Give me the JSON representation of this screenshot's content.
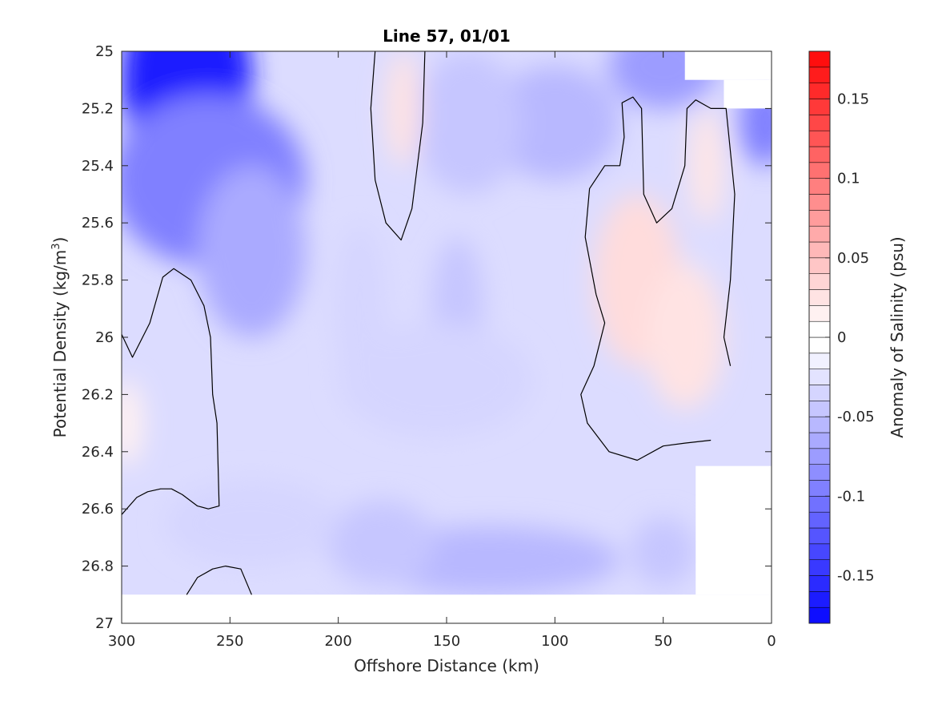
{
  "chart_data": {
    "type": "heatmap",
    "subtype": "filled-contour",
    "title": "Line 57, 01/01",
    "xlabel": "Offshore Distance (km)",
    "ylabel": "Potential Density (kg/m",
    "ylabel_sup": "3",
    "ylabel_close": ")",
    "x_reversed": true,
    "y_reversed": true,
    "xlim": [
      0,
      300
    ],
    "ylim": [
      25,
      27
    ],
    "xticks": [
      300,
      250,
      200,
      150,
      100,
      50,
      0
    ],
    "yticks": [
      25,
      25.2,
      25.4,
      25.6,
      25.8,
      26,
      26.2,
      26.4,
      26.6,
      26.8,
      27
    ],
    "xtick_labels": [
      "300",
      "250",
      "200",
      "150",
      "100",
      "50",
      "0"
    ],
    "ytick_labels": [
      "25",
      "25.2",
      "25.4",
      "25.6",
      "25.8",
      "26",
      "26.2",
      "26.4",
      "26.6",
      "26.8",
      "27"
    ],
    "colorbar": {
      "label": "Anomaly of Salinity (psu)",
      "range": [
        -0.18,
        0.18
      ],
      "levels": 36,
      "ticks": [
        0.15,
        0.1,
        0.05,
        0,
        -0.05,
        -0.1,
        -0.15
      ],
      "tick_labels": [
        "0.15",
        "0.1",
        "0.05",
        "0",
        "-0.05",
        "-0.1",
        "-0.15"
      ],
      "neg_color": "#0000ff",
      "pos_color": "#ff0000",
      "zero_color": "#ffffff"
    },
    "grid": false,
    "data_extent": {
      "x": [
        0,
        300
      ],
      "y": [
        25,
        26.9
      ]
    },
    "nodata_regions": [
      {
        "name": "top-right-gap-1",
        "x": [
          0,
          40
        ],
        "y": [
          25,
          25.1
        ]
      },
      {
        "name": "top-right-gap-2",
        "x": [
          0,
          22
        ],
        "y": [
          25.1,
          25.2
        ]
      },
      {
        "name": "bottom-right-gap",
        "x": [
          0,
          35
        ],
        "y": [
          26.45,
          26.9
        ]
      }
    ],
    "anomaly_field": [
      {
        "x": 270,
        "y": 25.1,
        "value": -0.16,
        "rx": 30,
        "ry": 0.35
      },
      {
        "x": 260,
        "y": 25.45,
        "value": -0.09,
        "rx": 45,
        "ry": 0.3
      },
      {
        "x": 240,
        "y": 25.7,
        "value": -0.06,
        "rx": 25,
        "ry": 0.3
      },
      {
        "x": 50,
        "y": 25.05,
        "value": -0.07,
        "rx": 25,
        "ry": 0.15
      },
      {
        "x": 100,
        "y": 25.25,
        "value": -0.05,
        "rx": 30,
        "ry": 0.2
      },
      {
        "x": 140,
        "y": 25.25,
        "value": -0.04,
        "rx": 25,
        "ry": 0.25
      },
      {
        "x": 3,
        "y": 25.25,
        "value": -0.09,
        "rx": 12,
        "ry": 0.15
      },
      {
        "x": 145,
        "y": 25.9,
        "value": -0.04,
        "rx": 12,
        "ry": 0.25
      },
      {
        "x": 190,
        "y": 25.9,
        "value": -0.03,
        "rx": 12,
        "ry": 0.3
      },
      {
        "x": 155,
        "y": 26.15,
        "value": -0.03,
        "rx": 45,
        "ry": 0.2
      },
      {
        "x": 130,
        "y": 26.78,
        "value": -0.05,
        "rx": 60,
        "ry": 0.12
      },
      {
        "x": 180,
        "y": 26.72,
        "value": -0.04,
        "rx": 25,
        "ry": 0.15
      },
      {
        "x": 50,
        "y": 26.75,
        "value": -0.04,
        "rx": 15,
        "ry": 0.12
      },
      {
        "x": 240,
        "y": 26.65,
        "value": -0.03,
        "rx": 40,
        "ry": 0.15
      },
      {
        "x": 35,
        "y": 25.9,
        "value": -0.02,
        "rx": 8,
        "ry": 0.2
      },
      {
        "x": 170,
        "y": 25.2,
        "value": 0.02,
        "rx": 8,
        "ry": 0.2
      },
      {
        "x": 62,
        "y": 25.8,
        "value": 0.025,
        "rx": 20,
        "ry": 0.3
      },
      {
        "x": 40,
        "y": 26.0,
        "value": 0.02,
        "rx": 18,
        "ry": 0.25
      },
      {
        "x": 30,
        "y": 25.4,
        "value": 0.018,
        "rx": 8,
        "ry": 0.2
      },
      {
        "x": 298,
        "y": 26.3,
        "value": 0.01,
        "rx": 8,
        "ry": 0.15
      }
    ],
    "zero_contours": [
      {
        "name": "contour-left-upper",
        "points": [
          [
            300,
            25.99
          ],
          [
            295,
            26.07
          ],
          [
            287,
            25.95
          ],
          [
            281,
            25.79
          ],
          [
            276,
            25.76
          ],
          [
            268,
            25.8
          ],
          [
            262,
            25.89
          ],
          [
            259,
            26.0
          ],
          [
            258,
            26.2
          ],
          [
            256,
            26.3
          ],
          [
            255,
            26.59
          ],
          [
            260,
            26.6
          ],
          [
            265,
            26.59
          ],
          [
            272,
            26.55
          ],
          [
            277,
            26.53
          ],
          [
            282,
            26.53
          ],
          [
            288,
            26.54
          ],
          [
            293,
            26.56
          ],
          [
            300,
            26.62
          ]
        ]
      },
      {
        "name": "contour-left-lower",
        "points": [
          [
            270,
            26.9
          ],
          [
            265,
            26.84
          ],
          [
            258,
            26.81
          ],
          [
            252,
            26.8
          ],
          [
            245,
            26.81
          ],
          [
            240,
            26.9
          ]
        ]
      },
      {
        "name": "contour-mid-top",
        "points": [
          [
            183,
            25.0
          ],
          [
            185,
            25.2
          ],
          [
            183,
            25.45
          ],
          [
            178,
            25.6
          ],
          [
            171,
            25.66
          ],
          [
            166,
            25.55
          ],
          [
            161,
            25.25
          ],
          [
            160,
            25.0
          ]
        ]
      },
      {
        "name": "contour-right",
        "points": [
          [
            28,
            26.36
          ],
          [
            40,
            26.37
          ],
          [
            50,
            26.38
          ],
          [
            62,
            26.43
          ],
          [
            75,
            26.4
          ],
          [
            85,
            26.3
          ],
          [
            88,
            26.2
          ],
          [
            82,
            26.1
          ],
          [
            77,
            25.95
          ],
          [
            81,
            25.85
          ],
          [
            86,
            25.65
          ],
          [
            84,
            25.48
          ],
          [
            77,
            25.4
          ],
          [
            70,
            25.4
          ],
          [
            68,
            25.3
          ],
          [
            69,
            25.18
          ],
          [
            64,
            25.16
          ],
          [
            60,
            25.2
          ],
          [
            59,
            25.5
          ],
          [
            53,
            25.6
          ],
          [
            46,
            25.55
          ],
          [
            40,
            25.4
          ],
          [
            39,
            25.2
          ],
          [
            35,
            25.17
          ],
          [
            28,
            25.2
          ],
          [
            21,
            25.2
          ],
          [
            17,
            25.5
          ],
          [
            19,
            25.8
          ],
          [
            22,
            26.0
          ],
          [
            19,
            26.1
          ]
        ]
      }
    ]
  }
}
